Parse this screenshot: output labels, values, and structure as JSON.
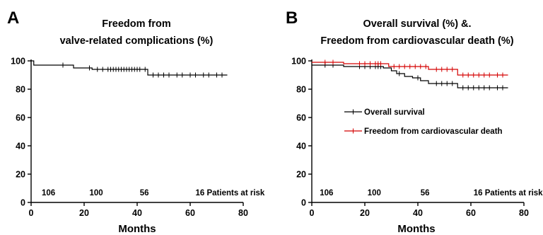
{
  "colors": {
    "black": "#000000",
    "red": "#d40000"
  },
  "chart_data": [
    {
      "type": "line",
      "panel": "A",
      "title_lines": [
        "Freedom from",
        "valve-related complications (%)"
      ],
      "xlabel": "Months",
      "ylabel": "",
      "xlim": [
        0,
        80
      ],
      "ylim": [
        0,
        100
      ],
      "xticks": [
        0,
        20,
        40,
        60,
        80
      ],
      "yticks": [
        0,
        20,
        40,
        60,
        80,
        100
      ],
      "grid": false,
      "risk_labels": [
        "106",
        "100",
        "56",
        "16 Patients at risk"
      ],
      "risk_x": [
        4,
        22,
        41,
        62
      ],
      "series": [
        {
          "color": "#000000",
          "steps": [
            [
              0,
              100
            ],
            [
              1,
              97
            ],
            [
              16,
              95
            ],
            [
              23,
              94
            ],
            [
              44,
              90
            ],
            [
              74,
              90
            ]
          ],
          "censors": [
            12,
            22,
            25,
            27,
            29,
            30,
            31,
            32,
            33,
            34,
            35,
            36,
            37,
            38,
            39,
            40,
            41,
            43,
            46,
            48,
            50,
            52,
            55,
            57,
            60,
            62,
            65,
            67,
            70,
            72
          ]
        }
      ]
    },
    {
      "type": "line",
      "panel": "B",
      "title_lines": [
        "Overall survival (%) &.",
        "Freedom from cardiovascular death (%)"
      ],
      "xlabel": "Months",
      "ylabel": "",
      "xlim": [
        0,
        80
      ],
      "ylim": [
        0,
        100
      ],
      "xticks": [
        0,
        20,
        40,
        60,
        80
      ],
      "yticks": [
        0,
        20,
        40,
        60,
        80,
        100
      ],
      "grid": false,
      "legend_position": "center-left",
      "risk_labels": [
        "106",
        "100",
        "56",
        "16 Patients at risk"
      ],
      "risk_x": [
        3,
        21,
        41,
        61
      ],
      "series": [
        {
          "name": "Overall survival",
          "color": "#000000",
          "steps": [
            [
              0,
              97
            ],
            [
              12,
              96
            ],
            [
              27,
              95
            ],
            [
              30,
              93
            ],
            [
              32,
              91
            ],
            [
              35,
              89
            ],
            [
              38,
              88
            ],
            [
              41,
              86
            ],
            [
              44,
              84
            ],
            [
              55,
              81
            ],
            [
              74,
              81
            ]
          ],
          "censors": [
            5,
            8,
            18,
            20,
            22,
            24,
            25,
            26,
            33,
            40,
            47,
            49,
            51,
            53,
            57,
            59,
            61,
            63,
            65,
            67,
            70,
            72
          ]
        },
        {
          "name": "Freedom from cardiovascular death",
          "color": "#d40000",
          "steps": [
            [
              0,
              99
            ],
            [
              12,
              98
            ],
            [
              29,
              96
            ],
            [
              44,
              94
            ],
            [
              55,
              90
            ],
            [
              74,
              90
            ]
          ],
          "censors": [
            5,
            8,
            18,
            20,
            22,
            24,
            25,
            26,
            31,
            33,
            35,
            37,
            39,
            41,
            43,
            47,
            49,
            51,
            53,
            57,
            59,
            61,
            63,
            65,
            67,
            70,
            72
          ]
        }
      ]
    }
  ]
}
